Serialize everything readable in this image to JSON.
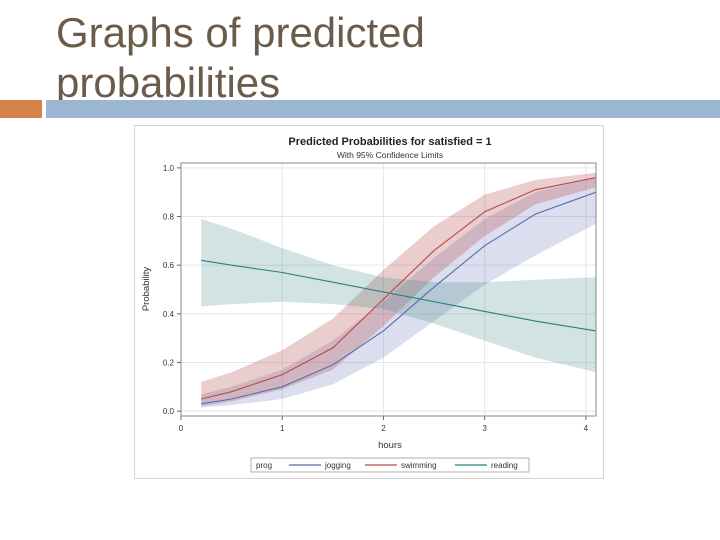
{
  "slide": {
    "title": "Graphs of predicted probabilities"
  },
  "colors": {
    "title_text": "#6b5b4b",
    "accent_orange": "#d6824a",
    "accent_blue": "#9ab6d2",
    "jogging": "#5a6bb0",
    "swimming": "#b54b4b",
    "reading": "#2e7f7f"
  },
  "chart_data": {
    "type": "line",
    "title": "Predicted Probabilities for satisfied = 1",
    "subtitle": "With 95% Confidence Limits",
    "xlabel": "hours",
    "ylabel": "Probability",
    "xlim": [
      0,
      4.1
    ],
    "ylim": [
      -0.02,
      1.02
    ],
    "x_ticks": [
      "0",
      "1",
      "2",
      "3",
      "4"
    ],
    "y_ticks": [
      "0.0",
      "0.2",
      "0.4",
      "0.6",
      "0.8",
      "1.0"
    ],
    "grid": true,
    "legend_title": "prog",
    "legend_position": "bottom",
    "x": [
      0.2,
      0.5,
      1.0,
      1.5,
      2.0,
      2.5,
      3.0,
      3.5,
      4.1
    ],
    "series": [
      {
        "name": "jogging",
        "values": [
          0.03,
          0.05,
          0.1,
          0.19,
          0.33,
          0.51,
          0.68,
          0.81,
          0.9
        ],
        "lower": [
          0.015,
          0.025,
          0.05,
          0.11,
          0.22,
          0.37,
          0.52,
          0.64,
          0.77
        ],
        "upper": [
          0.07,
          0.1,
          0.17,
          0.29,
          0.45,
          0.63,
          0.79,
          0.9,
          0.96
        ]
      },
      {
        "name": "swimming",
        "values": [
          0.05,
          0.08,
          0.15,
          0.26,
          0.46,
          0.66,
          0.82,
          0.91,
          0.96
        ],
        "lower": [
          0.02,
          0.04,
          0.09,
          0.17,
          0.35,
          0.55,
          0.72,
          0.85,
          0.92
        ],
        "upper": [
          0.12,
          0.16,
          0.25,
          0.38,
          0.58,
          0.76,
          0.89,
          0.95,
          0.98
        ]
      },
      {
        "name": "reading",
        "values": [
          0.62,
          0.6,
          0.57,
          0.53,
          0.49,
          0.45,
          0.41,
          0.37,
          0.33
        ],
        "lower": [
          0.43,
          0.44,
          0.45,
          0.44,
          0.42,
          0.36,
          0.29,
          0.22,
          0.16
        ],
        "upper": [
          0.79,
          0.75,
          0.67,
          0.6,
          0.55,
          0.53,
          0.53,
          0.54,
          0.55
        ]
      }
    ]
  }
}
